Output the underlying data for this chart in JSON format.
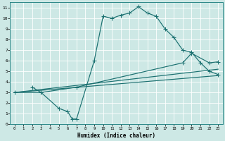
{
  "xlabel": "Humidex (Indice chaleur)",
  "bg_color": "#cde8e5",
  "line_color": "#1a7070",
  "grid_color": "#ffffff",
  "xlim": [
    -0.5,
    23.5
  ],
  "ylim": [
    0,
    11.5
  ],
  "xticks": [
    0,
    1,
    2,
    3,
    4,
    5,
    6,
    7,
    8,
    9,
    10,
    11,
    12,
    13,
    14,
    15,
    16,
    17,
    18,
    19,
    20,
    21,
    22,
    23
  ],
  "yticks": [
    0,
    1,
    2,
    3,
    4,
    5,
    6,
    7,
    8,
    9,
    10,
    11
  ],
  "line1_x": [
    2,
    3,
    5,
    6,
    6.5,
    7,
    9,
    10,
    11,
    12,
    13,
    14,
    15,
    16,
    17,
    18,
    19,
    20,
    21,
    22,
    23
  ],
  "line1_y": [
    3.5,
    3.0,
    1.5,
    1.2,
    0.5,
    0.5,
    6.0,
    10.2,
    10.0,
    10.3,
    10.5,
    11.1,
    10.5,
    10.2,
    9.0,
    8.2,
    7.0,
    6.8,
    5.8,
    5.0,
    4.7
  ],
  "line2_x": [
    0,
    3,
    7,
    19,
    20,
    22,
    23
  ],
  "line2_y": [
    3.0,
    3.0,
    3.5,
    5.8,
    6.7,
    5.8,
    5.9
  ],
  "line3_x": [
    0,
    23
  ],
  "line3_y": [
    3.0,
    5.2
  ],
  "line4_x": [
    0,
    23
  ],
  "line4_y": [
    3.0,
    4.6
  ]
}
